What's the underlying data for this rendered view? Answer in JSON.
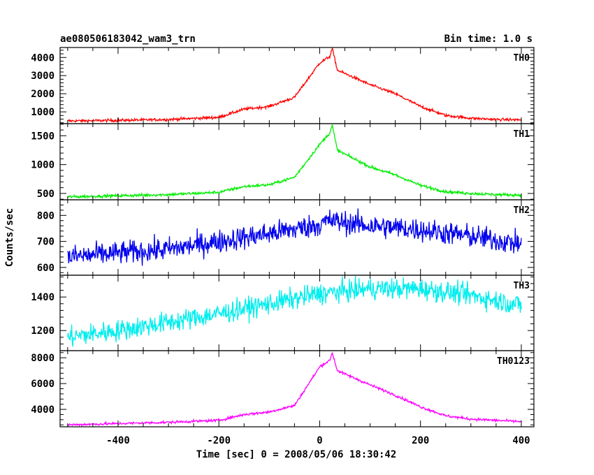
{
  "chart_data": {
    "type": "line",
    "title": "ae080506183042_wam3_trn",
    "bin_time": "Bin time: 1.0 s",
    "xlabel": "Time [sec] 0 = 2008/05/06 18:30:42",
    "ylabel": "Counts/sec",
    "xlim": [
      -515,
      425
    ],
    "xticks": [
      -400,
      -200,
      0,
      200,
      400
    ],
    "grid": false,
    "panels": [
      {
        "name": "TH0",
        "color": "#ff0000",
        "ylim": [
          350,
          4550
        ],
        "yticks": [
          1000,
          2000,
          3000,
          4000
        ],
        "noise": 55,
        "profile": [
          [
            -500,
            500
          ],
          [
            -400,
            530
          ],
          [
            -300,
            580
          ],
          [
            -200,
            700
          ],
          [
            -150,
            1150
          ],
          [
            -100,
            1300
          ],
          [
            -50,
            1800
          ],
          [
            0,
            3700
          ],
          [
            20,
            4050
          ],
          [
            25,
            4500
          ],
          [
            35,
            3300
          ],
          [
            100,
            2500
          ],
          [
            150,
            2000
          ],
          [
            200,
            1300
          ],
          [
            250,
            800
          ],
          [
            300,
            650
          ],
          [
            350,
            580
          ],
          [
            400,
            560
          ]
        ],
        "series": {
          "name": "TH0"
        }
      },
      {
        "name": "TH1",
        "color": "#00ee00",
        "ylim": [
          390,
          1710
        ],
        "yticks": [
          500,
          1000,
          1500
        ],
        "noise": 18,
        "profile": [
          [
            -500,
            440
          ],
          [
            -400,
            460
          ],
          [
            -300,
            480
          ],
          [
            -200,
            520
          ],
          [
            -150,
            620
          ],
          [
            -100,
            650
          ],
          [
            -50,
            780
          ],
          [
            0,
            1350
          ],
          [
            20,
            1550
          ],
          [
            25,
            1680
          ],
          [
            35,
            1250
          ],
          [
            100,
            960
          ],
          [
            150,
            820
          ],
          [
            200,
            640
          ],
          [
            250,
            530
          ],
          [
            300,
            500
          ],
          [
            350,
            480
          ],
          [
            400,
            470
          ]
        ],
        "series": {
          "name": "TH1"
        }
      },
      {
        "name": "TH2",
        "color": "#0000ee",
        "ylim": [
          570,
          860
        ],
        "yticks": [
          600,
          700,
          800
        ],
        "noise": 32,
        "profile": [
          [
            -500,
            640
          ],
          [
            -400,
            655
          ],
          [
            -300,
            670
          ],
          [
            -200,
            700
          ],
          [
            -100,
            730
          ],
          [
            0,
            765
          ],
          [
            20,
            780
          ],
          [
            100,
            760
          ],
          [
            200,
            745
          ],
          [
            300,
            720
          ],
          [
            400,
            690
          ]
        ],
        "series": {
          "name": "TH2"
        }
      },
      {
        "name": "TH3",
        "color": "#00eeee",
        "ylim": [
          1080,
          1530
        ],
        "yticks": [
          1200,
          1400
        ],
        "noise": 45,
        "profile": [
          [
            -500,
            1160
          ],
          [
            -400,
            1200
          ],
          [
            -300,
            1250
          ],
          [
            -200,
            1300
          ],
          [
            -100,
            1360
          ],
          [
            0,
            1420
          ],
          [
            100,
            1450
          ],
          [
            200,
            1450
          ],
          [
            300,
            1410
          ],
          [
            400,
            1350
          ]
        ],
        "series": {
          "name": "TH3"
        }
      },
      {
        "name": "TH0123",
        "color": "#ff00ff",
        "ylim": [
          2650,
          8550
        ],
        "yticks": [
          4000,
          6000,
          8000
        ],
        "noise": 70,
        "profile": [
          [
            -500,
            2800
          ],
          [
            -400,
            2900
          ],
          [
            -300,
            3000
          ],
          [
            -200,
            3150
          ],
          [
            -150,
            3600
          ],
          [
            -100,
            3800
          ],
          [
            -50,
            4300
          ],
          [
            0,
            7300
          ],
          [
            20,
            7800
          ],
          [
            25,
            8400
          ],
          [
            35,
            7000
          ],
          [
            100,
            5900
          ],
          [
            150,
            5100
          ],
          [
            200,
            4200
          ],
          [
            250,
            3500
          ],
          [
            300,
            3250
          ],
          [
            350,
            3150
          ],
          [
            400,
            3050
          ]
        ],
        "series": {
          "name": "TH0123"
        }
      }
    ]
  }
}
